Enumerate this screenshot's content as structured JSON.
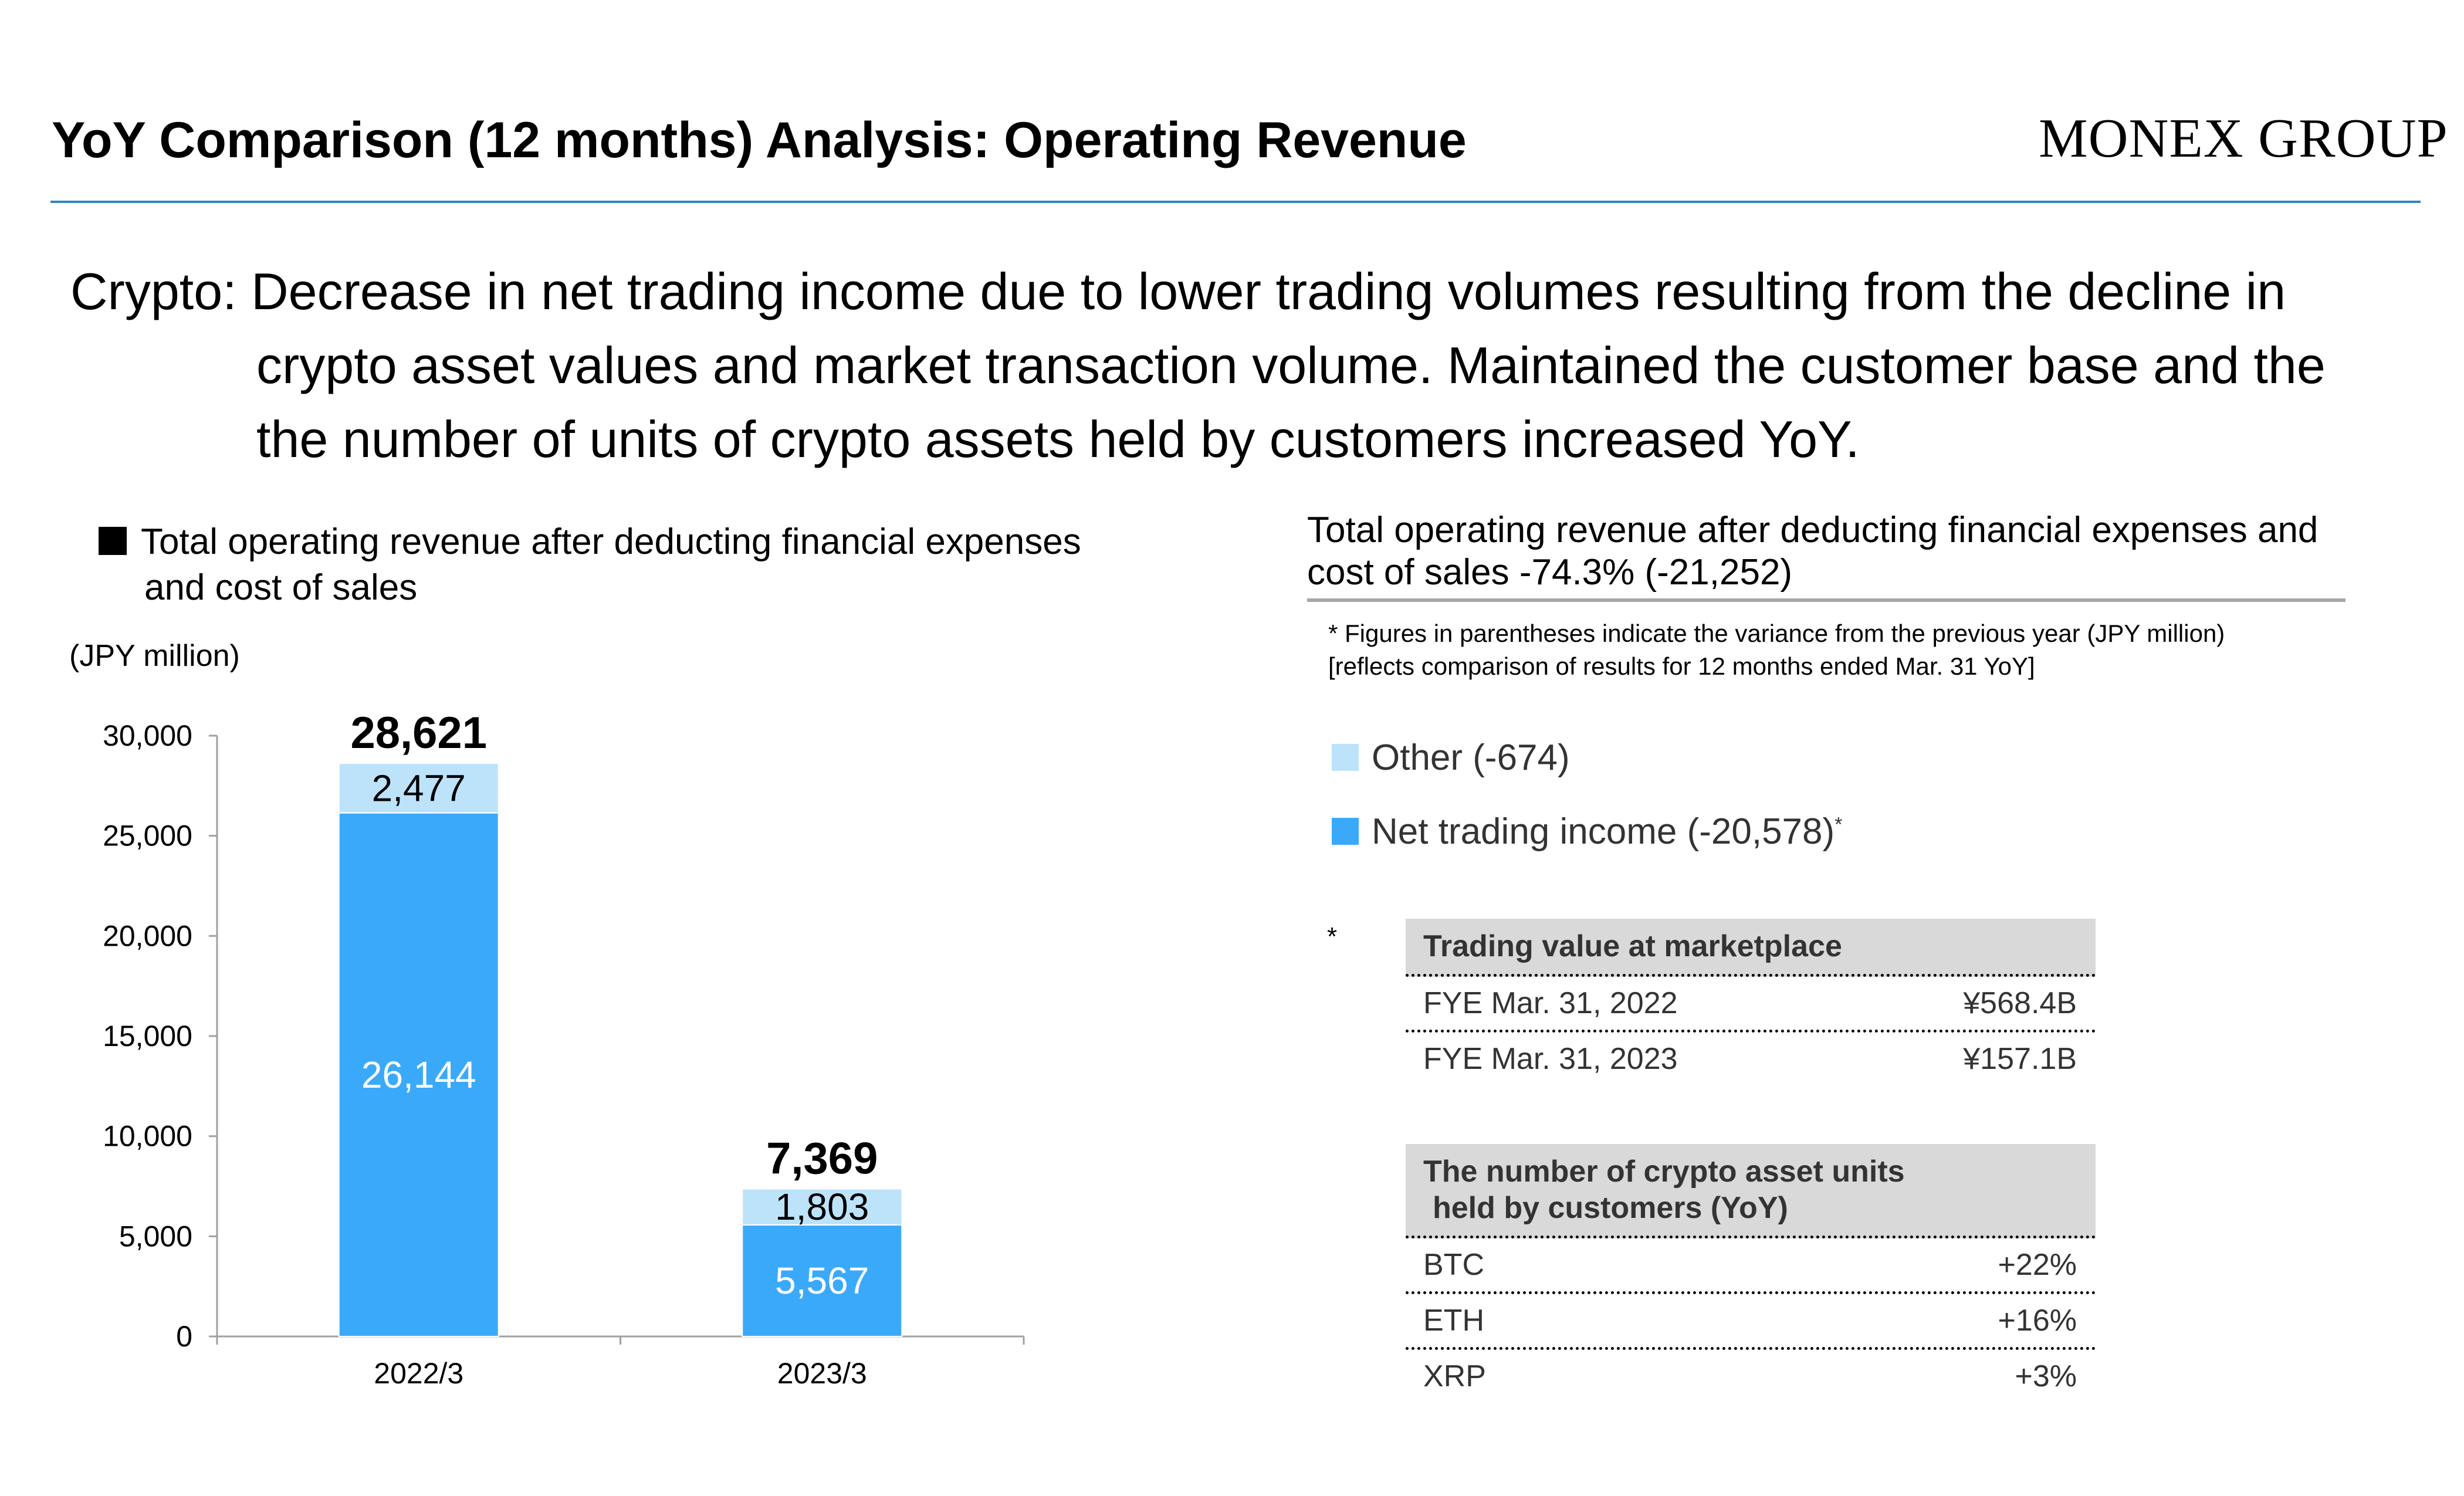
{
  "header": {
    "title": "YoY Comparison (12 months) Analysis: Operating Revenue",
    "logo_text": "MONEX GROUP"
  },
  "summary": {
    "lines": [
      "Crypto: Decrease in net trading income due to lower trading volumes resulting from the decline in",
      "crypto asset values and market transaction volume. Maintained the customer base and the",
      "the number of units of crypto assets held by customers increased YoY."
    ]
  },
  "left_panel": {
    "heading_line1": "Total operating revenue after deducting financial expenses",
    "heading_line2": "and cost of sales",
    "unit": "(JPY million)"
  },
  "chart_data": {
    "type": "bar",
    "stacked": true,
    "categories": [
      "2022/3",
      "2023/3"
    ],
    "series": [
      {
        "name": "Net trading income",
        "values": [
          26144,
          5567
        ],
        "color": "#3ba9f9",
        "value_labels": [
          "26,144",
          "5,567"
        ],
        "label_color": "#ffffff"
      },
      {
        "name": "Other",
        "values": [
          2477,
          1803
        ],
        "color": "#bde3fb",
        "value_labels": [
          "2,477",
          "1,803"
        ],
        "label_color": "#000000"
      }
    ],
    "totals": [
      28621,
      7369
    ],
    "total_labels": [
      "28,621",
      "7,369"
    ],
    "ylim": [
      0,
      30000
    ],
    "yticks": [
      0,
      5000,
      10000,
      15000,
      20000,
      25000,
      30000
    ],
    "ytick_labels": [
      "0",
      "5,000",
      "10,000",
      "15,000",
      "20,000",
      "25,000",
      "30,000"
    ],
    "title": "",
    "xlabel": "",
    "ylabel": "",
    "grid": false
  },
  "right_panel": {
    "heading_line1": "Total operating revenue after deducting financial expenses and",
    "heading_line2": "cost of sales -74.3% (-21,252)",
    "footnote_line1": "* Figures in parentheses indicate the variance from the previous year (JPY million)",
    "footnote_line2": "[reflects comparison of results for 12 months ended Mar. 31 YoY]",
    "legend": [
      {
        "label": "Other (-674)",
        "color": "#bde3fb",
        "sup": ""
      },
      {
        "label": "Net trading income (-20,578)",
        "color": "#3ba9f9",
        "sup": "*"
      }
    ],
    "asterisk": "*",
    "trading_table": {
      "header": "Trading value at marketplace",
      "rows": [
        {
          "label": "FYE Mar. 31, 2022",
          "value": "¥568.4B"
        },
        {
          "label": "FYE Mar. 31, 2023",
          "value": "¥157.1B"
        }
      ]
    },
    "units_table": {
      "header_line1": "The number of crypto asset units",
      "header_line2": "held by customers (YoY)",
      "rows": [
        {
          "label": "BTC",
          "value": "+22%"
        },
        {
          "label": "ETH",
          "value": "+16%"
        },
        {
          "label": "XRP",
          "value": "+3%"
        }
      ]
    }
  }
}
